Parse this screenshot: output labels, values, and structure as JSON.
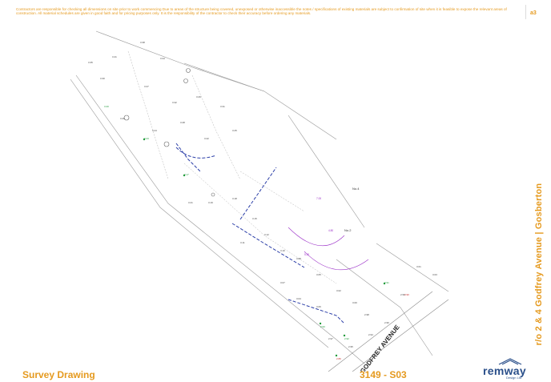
{
  "disclaimer": "Contractors are responsible for checking all dimensions on site prior to work commencing Due to areas of the structure being covered, unexposed or otherwise inaccessible the notes / specifications of existing materials are subject to confirmation of site when it is feasible to expose the relevant areas of construction. All material schedules are given in good faith and for pricing purposes only. It is the responsibility of the contractor to check their accuracy before ordering any materials.",
  "sheet_size": "a3",
  "project_title": "r/o 2 & 4 Godfrey Avenue | Gosberton",
  "drawing_title": "Survey Drawing",
  "drawing_number": "3149 - S03",
  "logo": {
    "word": "remway",
    "subtitle": "Design Ltd"
  },
  "plan": {
    "road_name": "GODFREY AVENUE",
    "house_labels": [
      "No.4",
      "No.2"
    ],
    "colors": {
      "boundary": "#8a8a8a",
      "dashed_blue": "#2c3fa8",
      "purple": "#9b30c8",
      "green": "#1f9a3a",
      "red": "#c82a2a",
      "accent": "#e59a1f"
    }
  }
}
